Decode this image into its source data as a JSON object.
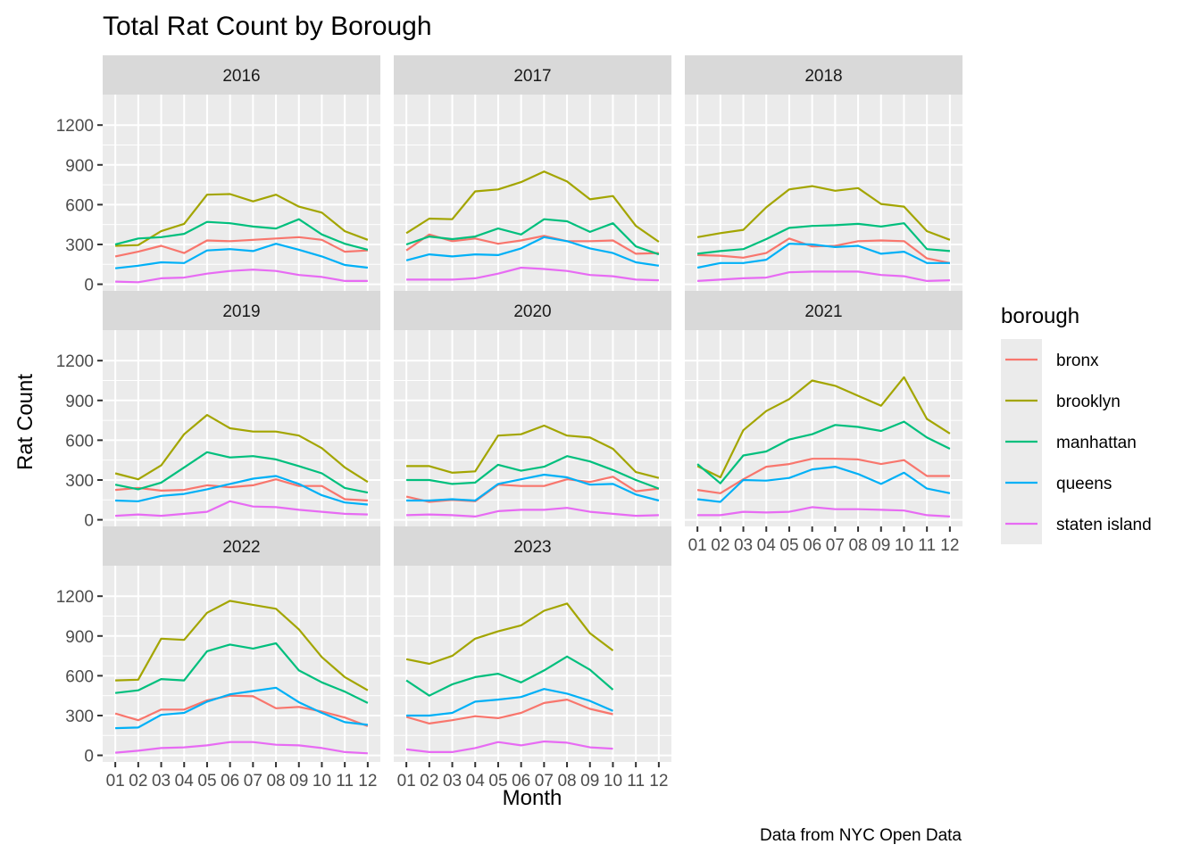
{
  "chart_data": {
    "type": "line",
    "title": "Total Rat Count by Borough",
    "xlabel": "Month",
    "ylabel": "Rat Count",
    "caption": "Data from NYC Open Data",
    "legend_title": "borough",
    "legend_position": "right",
    "facet_by": "year",
    "grid": true,
    "ylim": [
      -50,
      1430
    ],
    "y_ticks": [
      0,
      300,
      600,
      900,
      1200
    ],
    "months": [
      "01",
      "02",
      "03",
      "04",
      "05",
      "06",
      "07",
      "08",
      "09",
      "10",
      "11",
      "12"
    ],
    "colors": {
      "bronx": "#F8766D",
      "brooklyn": "#A3A500",
      "manhattan": "#00BF7D",
      "queens": "#00B0F6",
      "staten island": "#E76BF3"
    },
    "borough_order": [
      "bronx",
      "brooklyn",
      "manhattan",
      "queens",
      "staten island"
    ],
    "panels": [
      {
        "year": "2016",
        "series": {
          "bronx": [
            210,
            245,
            290,
            235,
            330,
            325,
            335,
            345,
            355,
            335,
            245,
            255
          ],
          "brooklyn": [
            290,
            295,
            400,
            455,
            675,
            680,
            625,
            675,
            585,
            540,
            400,
            335
          ],
          "manhattan": [
            300,
            345,
            355,
            380,
            470,
            460,
            435,
            420,
            490,
            375,
            305,
            260
          ],
          "queens": [
            120,
            140,
            165,
            160,
            255,
            265,
            250,
            305,
            260,
            210,
            145,
            125
          ],
          "staten island": [
            20,
            15,
            45,
            50,
            80,
            100,
            110,
            100,
            70,
            55,
            25,
            25
          ]
        }
      },
      {
        "year": "2017",
        "series": {
          "bronx": [
            255,
            375,
            325,
            345,
            305,
            330,
            365,
            325,
            325,
            330,
            230,
            235
          ],
          "brooklyn": [
            385,
            495,
            490,
            700,
            715,
            770,
            850,
            775,
            640,
            665,
            440,
            320
          ],
          "manhattan": [
            300,
            360,
            340,
            360,
            420,
            375,
            490,
            475,
            395,
            460,
            285,
            225
          ],
          "queens": [
            180,
            225,
            210,
            225,
            220,
            270,
            355,
            325,
            270,
            235,
            165,
            140
          ],
          "staten island": [
            35,
            35,
            35,
            45,
            80,
            125,
            115,
            100,
            70,
            60,
            35,
            30
          ]
        }
      },
      {
        "year": "2018",
        "series": {
          "bronx": [
            220,
            215,
            200,
            235,
            345,
            285,
            290,
            325,
            330,
            325,
            195,
            160
          ],
          "brooklyn": [
            355,
            385,
            410,
            580,
            715,
            740,
            705,
            725,
            605,
            585,
            400,
            335
          ],
          "manhattan": [
            230,
            250,
            265,
            340,
            425,
            440,
            445,
            455,
            435,
            460,
            265,
            250
          ],
          "queens": [
            125,
            160,
            160,
            185,
            305,
            300,
            280,
            290,
            230,
            245,
            160,
            160
          ],
          "staten island": [
            25,
            35,
            45,
            50,
            90,
            95,
            95,
            95,
            70,
            60,
            25,
            30
          ]
        }
      },
      {
        "year": "2019",
        "series": {
          "bronx": [
            225,
            240,
            220,
            225,
            260,
            245,
            260,
            305,
            255,
            255,
            155,
            145
          ],
          "brooklyn": [
            350,
            305,
            410,
            645,
            790,
            690,
            665,
            665,
            635,
            540,
            395,
            285
          ],
          "manhattan": [
            265,
            230,
            280,
            395,
            510,
            470,
            480,
            455,
            405,
            350,
            240,
            205
          ],
          "queens": [
            145,
            140,
            180,
            195,
            230,
            270,
            310,
            330,
            270,
            185,
            130,
            115
          ],
          "staten island": [
            30,
            40,
            30,
            45,
            60,
            140,
            100,
            95,
            75,
            60,
            45,
            40
          ]
        }
      },
      {
        "year": "2020",
        "series": {
          "bronx": [
            175,
            135,
            150,
            140,
            265,
            255,
            255,
            305,
            285,
            325,
            215,
            235
          ],
          "brooklyn": [
            405,
            405,
            355,
            365,
            635,
            645,
            710,
            635,
            620,
            535,
            360,
            315
          ],
          "manhattan": [
            300,
            300,
            270,
            280,
            415,
            370,
            400,
            480,
            440,
            375,
            300,
            235
          ],
          "queens": [
            145,
            145,
            155,
            145,
            270,
            305,
            340,
            320,
            265,
            270,
            190,
            145
          ],
          "staten island": [
            35,
            40,
            35,
            25,
            65,
            75,
            75,
            90,
            60,
            45,
            30,
            35
          ]
        }
      },
      {
        "year": "2021",
        "series": {
          "bronx": [
            225,
            200,
            305,
            400,
            420,
            460,
            460,
            455,
            420,
            450,
            330,
            330
          ],
          "brooklyn": [
            405,
            320,
            675,
            820,
            910,
            1050,
            1010,
            935,
            860,
            1075,
            760,
            650
          ],
          "manhattan": [
            420,
            275,
            485,
            515,
            605,
            645,
            715,
            700,
            670,
            740,
            620,
            535
          ],
          "queens": [
            155,
            135,
            300,
            295,
            315,
            380,
            400,
            345,
            270,
            355,
            235,
            200
          ],
          "staten island": [
            35,
            35,
            60,
            55,
            60,
            95,
            80,
            80,
            75,
            70,
            35,
            25
          ]
        }
      },
      {
        "year": "2022",
        "series": {
          "bronx": [
            315,
            265,
            345,
            345,
            415,
            450,
            445,
            355,
            365,
            330,
            285,
            220
          ],
          "brooklyn": [
            565,
            570,
            880,
            870,
            1075,
            1165,
            1135,
            1105,
            950,
            740,
            590,
            490
          ],
          "manhattan": [
            470,
            490,
            575,
            565,
            785,
            835,
            805,
            845,
            640,
            550,
            480,
            395
          ],
          "queens": [
            205,
            210,
            305,
            320,
            405,
            460,
            485,
            510,
            400,
            320,
            250,
            230
          ],
          "staten island": [
            20,
            35,
            55,
            60,
            75,
            100,
            100,
            80,
            75,
            55,
            25,
            15
          ]
        }
      },
      {
        "year": "2023",
        "series": {
          "bronx": [
            290,
            240,
            265,
            295,
            280,
            320,
            395,
            420,
            350,
            310
          ],
          "brooklyn": [
            725,
            690,
            750,
            880,
            935,
            980,
            1090,
            1145,
            920,
            790
          ],
          "manhattan": [
            565,
            450,
            535,
            590,
            615,
            550,
            640,
            745,
            645,
            495
          ],
          "queens": [
            300,
            300,
            320,
            405,
            420,
            440,
            500,
            465,
            410,
            335
          ],
          "staten island": [
            45,
            25,
            25,
            55,
            100,
            75,
            105,
            95,
            60,
            50
          ]
        }
      }
    ]
  }
}
